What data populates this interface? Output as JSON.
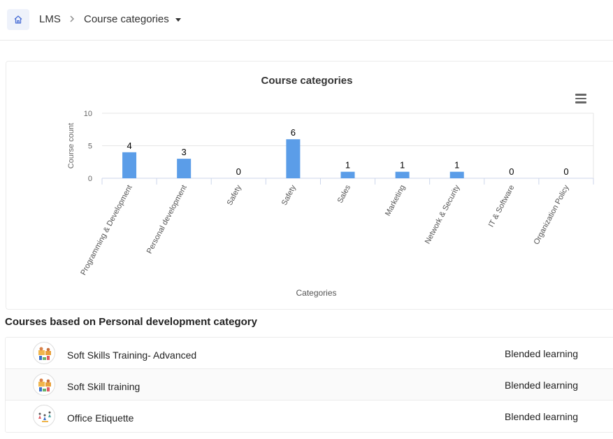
{
  "breadcrumb": {
    "home_icon": "home-icon",
    "root": "LMS",
    "separator_icon": "chevron-right-icon",
    "current": "Course categories"
  },
  "chart_data": {
    "type": "bar",
    "title": "Course categories",
    "xlabel": "Categories",
    "ylabel": "Course count",
    "ylim": [
      0,
      10
    ],
    "yticks": [
      "0",
      "5",
      "10"
    ],
    "categories": [
      "Programming & Development",
      "Personal development",
      "Safety",
      "Safety",
      "Sales",
      "Marketing",
      "Network & Security",
      "IT & Software",
      "Organization Policy"
    ],
    "values": [
      4,
      3,
      0,
      6,
      1,
      1,
      1,
      0,
      0
    ],
    "bar_color": "#5b9de8",
    "grid": true,
    "data_labels": true
  },
  "chart_menu_icon": "hamburger-menu-icon",
  "section": {
    "title": "Courses based on Personal development category"
  },
  "courses": [
    {
      "name": "Soft Skills Training- Advanced",
      "type": "Blended learning",
      "thumb_icon": "course-thumbnail-icon"
    },
    {
      "name": "Soft Skill training",
      "type": "Blended learning",
      "thumb_icon": "course-thumbnail-icon"
    },
    {
      "name": "Office Etiquette",
      "type": "Blended learning",
      "thumb_icon": "course-thumbnail-icon"
    }
  ]
}
